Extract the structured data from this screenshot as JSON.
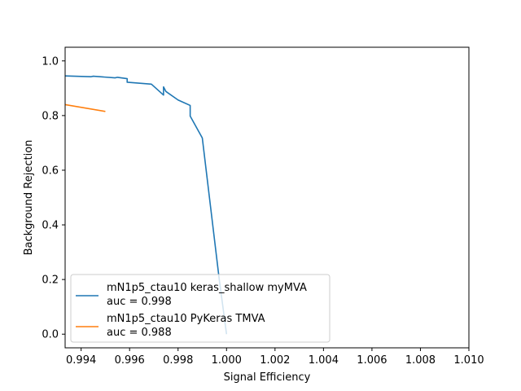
{
  "chart_data": {
    "type": "line",
    "title": "",
    "xlabel": "Signal Efficiency",
    "ylabel": "Background Rejection",
    "xlim": [
      0.99334,
      1.01
    ],
    "ylim": [
      -0.05,
      1.05
    ],
    "x_ticks": [
      0.994,
      0.996,
      0.998,
      1.0,
      1.002,
      1.004,
      1.006,
      1.008,
      1.01
    ],
    "x_tick_labels": [
      "0.994",
      "0.996",
      "0.998",
      "1.000",
      "1.002",
      "1.004",
      "1.006",
      "1.008",
      "1.010"
    ],
    "y_ticks": [
      0.0,
      0.2,
      0.4,
      0.6,
      0.8,
      1.0
    ],
    "y_tick_labels": [
      "0.0",
      "0.2",
      "0.4",
      "0.6",
      "0.8",
      "1.0"
    ],
    "grid": false,
    "legend_position": "lower-left",
    "series": [
      {
        "name": "mN1p5_ctau10 keras_shallow myMVA",
        "auc_label": "auc = 0.998",
        "color": "#1f77b4",
        "x": [
          0.99334,
          0.9944,
          0.9945,
          0.9954,
          0.9955,
          0.9959,
          0.9959,
          0.9969,
          0.9974,
          0.9974,
          0.9975,
          0.998,
          0.9985,
          0.9985,
          0.999,
          0.9997,
          1.0
        ],
        "y": [
          0.945,
          0.942,
          0.944,
          0.938,
          0.94,
          0.935,
          0.922,
          0.915,
          0.875,
          0.905,
          0.888,
          0.857,
          0.837,
          0.798,
          0.718,
          0.2,
          0.0
        ]
      },
      {
        "name": "mN1p5_ctau10 PyKeras TMVA",
        "auc_label": "auc = 0.988",
        "color": "#ff7f0e",
        "x": [
          0.99334,
          0.995
        ],
        "y": [
          0.84,
          0.815
        ]
      }
    ]
  }
}
